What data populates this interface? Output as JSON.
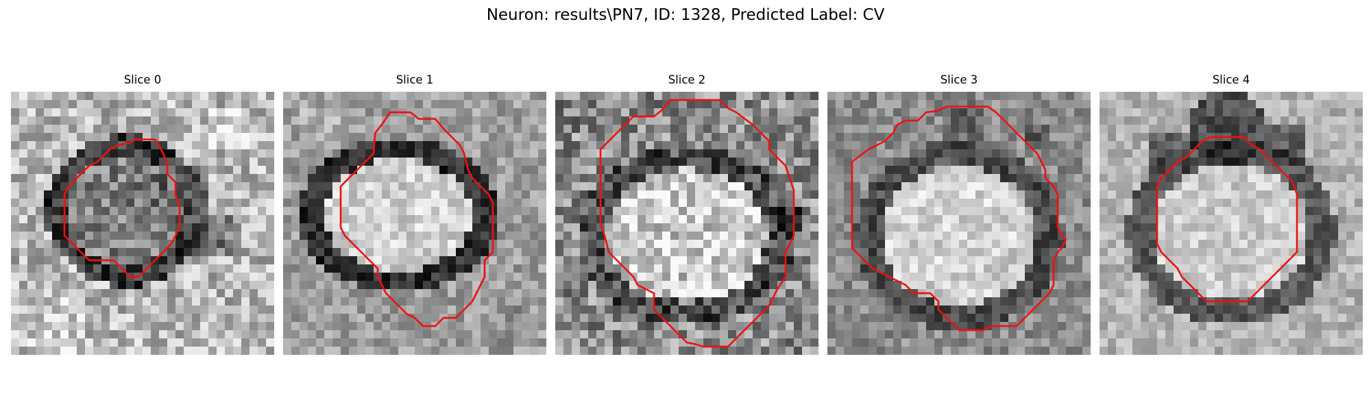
{
  "figure": {
    "title": "Neuron: results\\PN7, ID: 1328, Predicted Label: CV"
  },
  "panels": [
    {
      "title": "Slice 0"
    },
    {
      "title": "Slice 1"
    },
    {
      "title": "Slice 2"
    },
    {
      "title": "Slice 3"
    },
    {
      "title": "Slice 4"
    }
  ],
  "colors": {
    "contour": "#ee1111"
  }
}
